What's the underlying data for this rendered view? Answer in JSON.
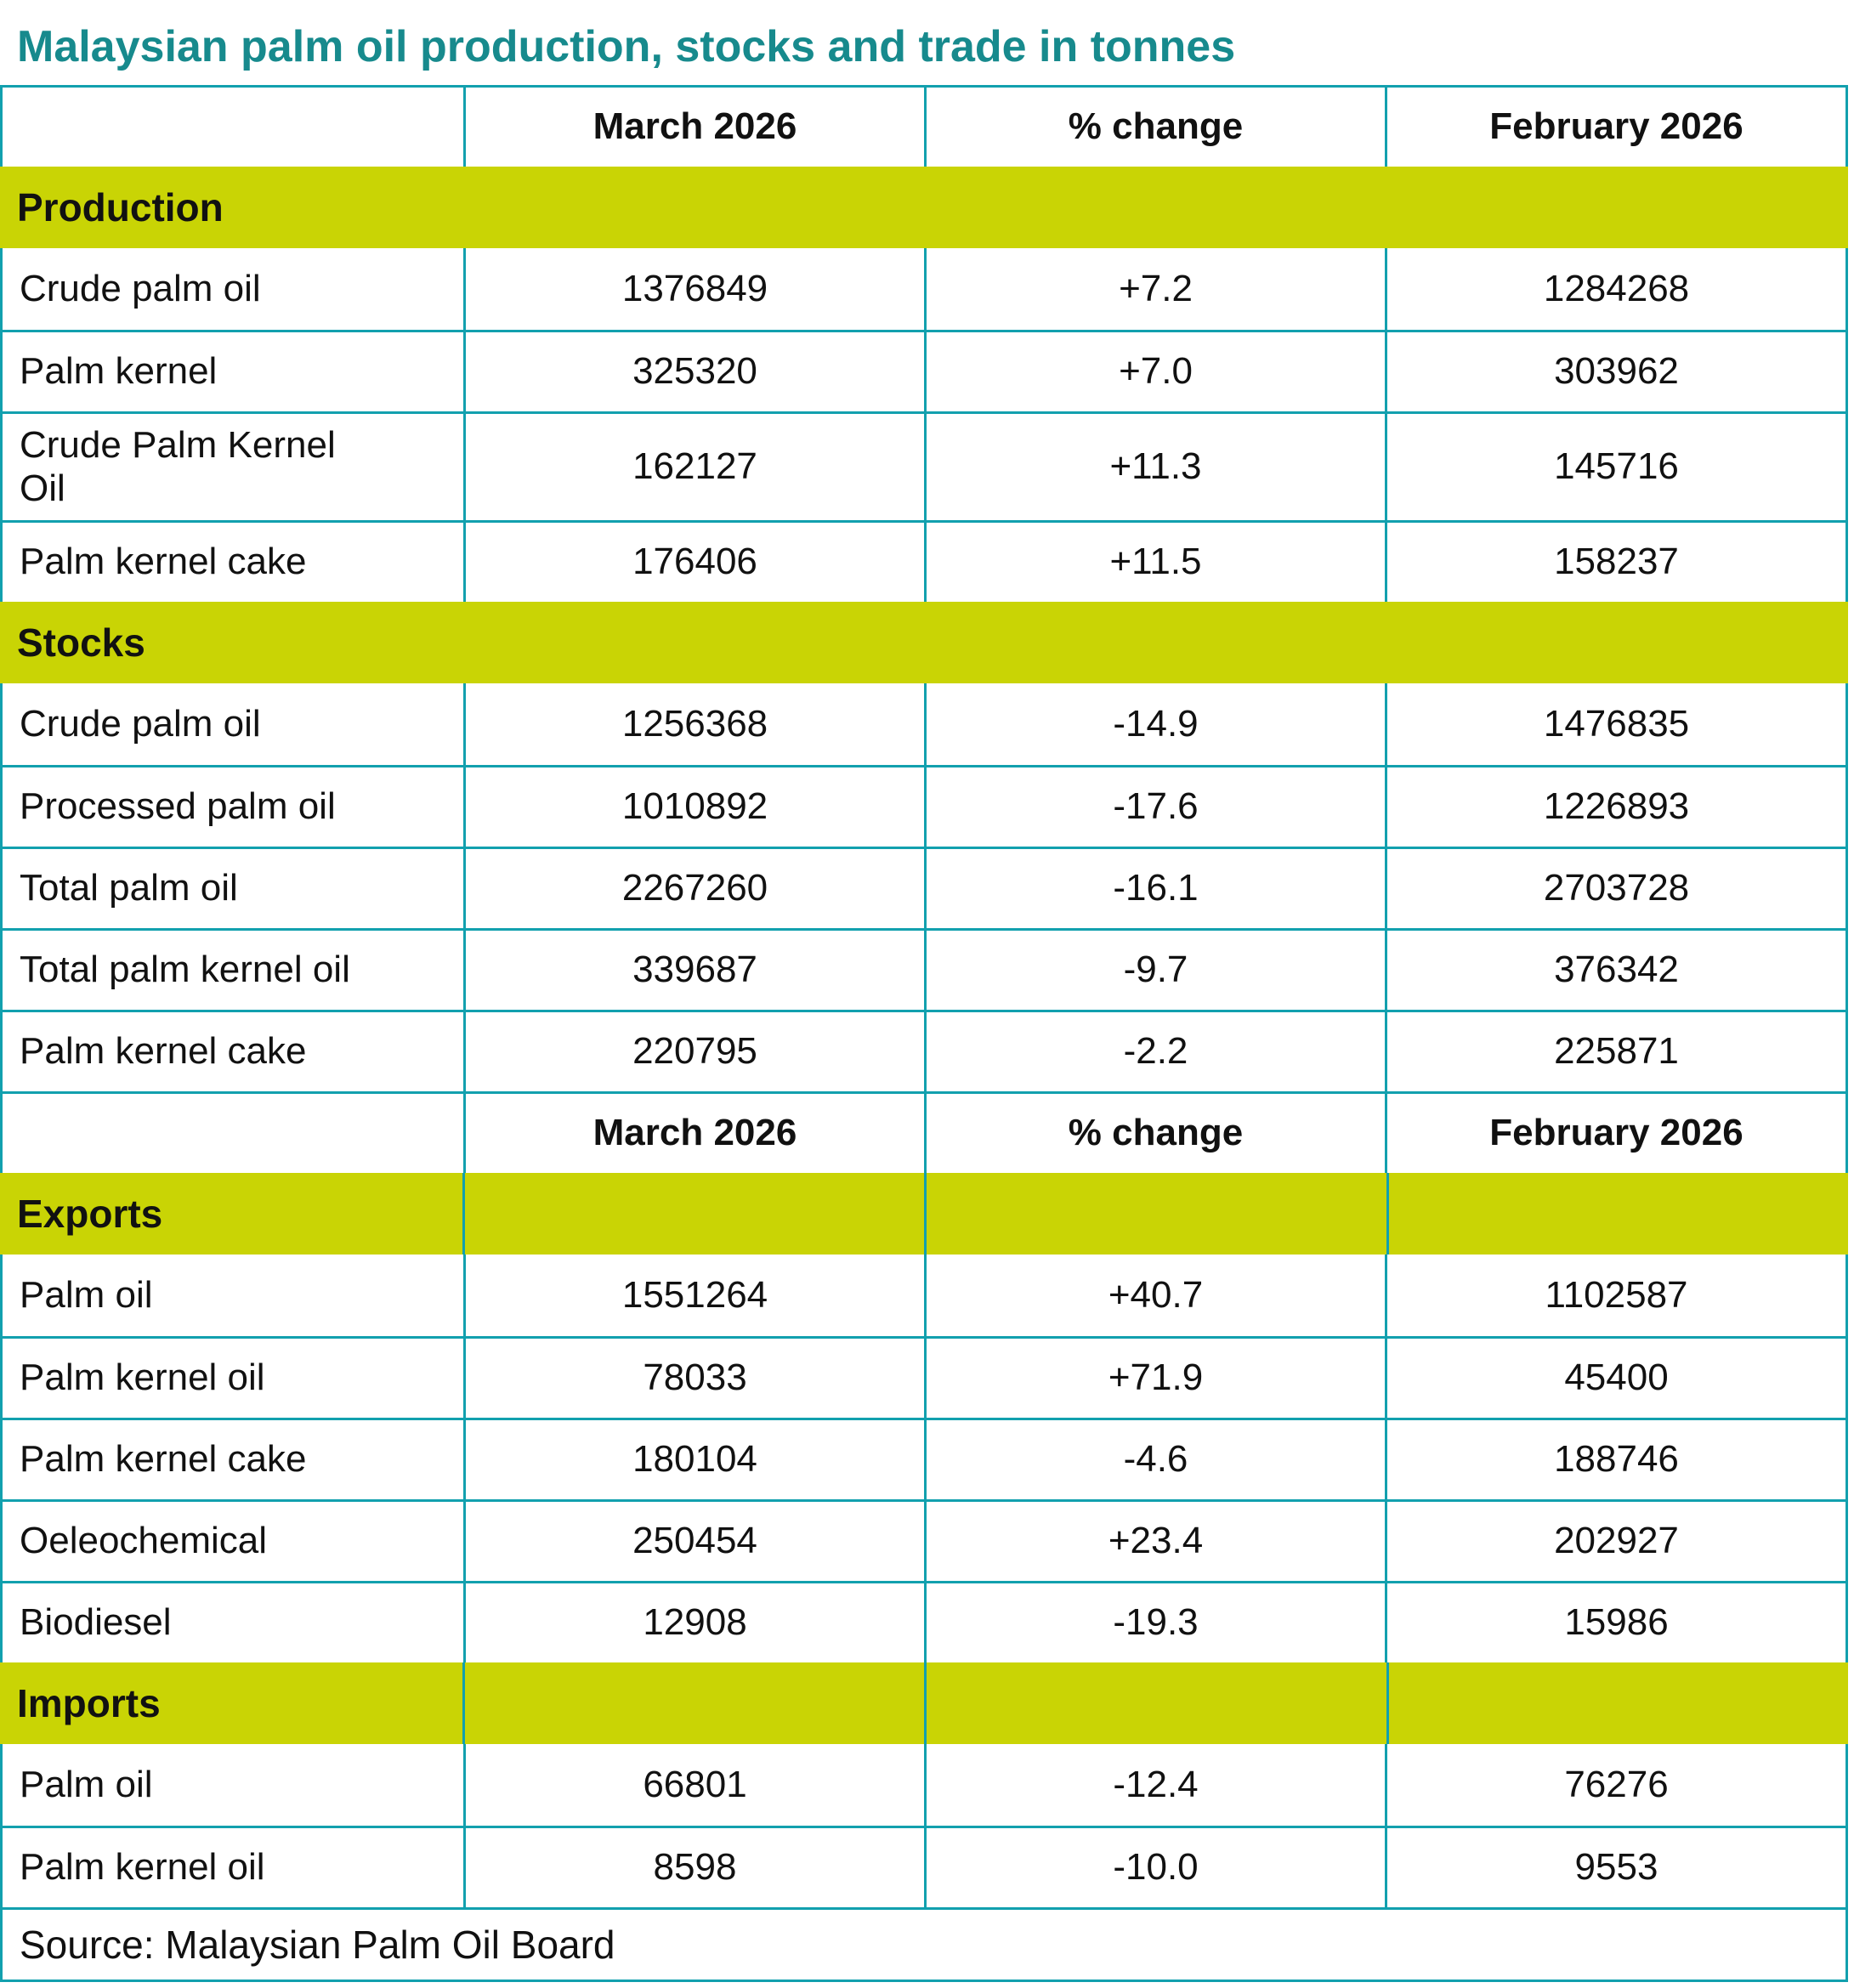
{
  "colors": {
    "title_text": "#178a8d",
    "border": "#12a0ae",
    "band": "#c9d405",
    "text": "#111111",
    "background": "#ffffff"
  },
  "chart_data": {
    "type": "table",
    "title": "Malaysian palm oil production, stocks and trade in tonnes",
    "source": "Source: Malaysian Palm Oil Board",
    "units": "tonnes",
    "columns": [
      "March 2026",
      "% change",
      "February 2026"
    ],
    "header_repeat_before": [
      "Production",
      "Exports"
    ],
    "sections": [
      {
        "name": "Production",
        "band_split": false,
        "rows": [
          [
            "Crude palm oil",
            1376849,
            "+7.2",
            1284268
          ],
          [
            "Palm kernel",
            325320,
            "+7.0",
            303962
          ],
          [
            "Crude Palm Kernel Oil",
            162127,
            "+11.3",
            145716
          ],
          [
            "Palm kernel cake",
            176406,
            "+11.5",
            158237
          ]
        ]
      },
      {
        "name": "Stocks",
        "band_split": false,
        "rows": [
          [
            "Crude palm oil",
            1256368,
            "-14.9",
            1476835
          ],
          [
            "Processed palm oil",
            1010892,
            "-17.6",
            1226893
          ],
          [
            "Total palm oil",
            2267260,
            "-16.1",
            2703728
          ],
          [
            "Total palm kernel oil",
            339687,
            "-9.7",
            376342
          ],
          [
            "Palm kernel cake",
            220795,
            "-2.2",
            225871
          ]
        ]
      },
      {
        "name": "Exports",
        "band_split": true,
        "rows": [
          [
            "Palm oil",
            1551264,
            "+40.7",
            1102587
          ],
          [
            "Palm kernel oil",
            78033,
            "+71.9",
            45400
          ],
          [
            "Palm kernel cake",
            180104,
            "-4.6",
            188746
          ],
          [
            "Oeleochemical",
            250454,
            "+23.4",
            202927
          ],
          [
            "Biodiesel",
            12908,
            "-19.3",
            15986
          ]
        ]
      },
      {
        "name": "Imports",
        "band_split": true,
        "rows": [
          [
            "Palm oil",
            66801,
            "-12.4",
            76276
          ],
          [
            "Palm kernel oil",
            8598,
            "-10.0",
            9553
          ]
        ]
      }
    ]
  }
}
